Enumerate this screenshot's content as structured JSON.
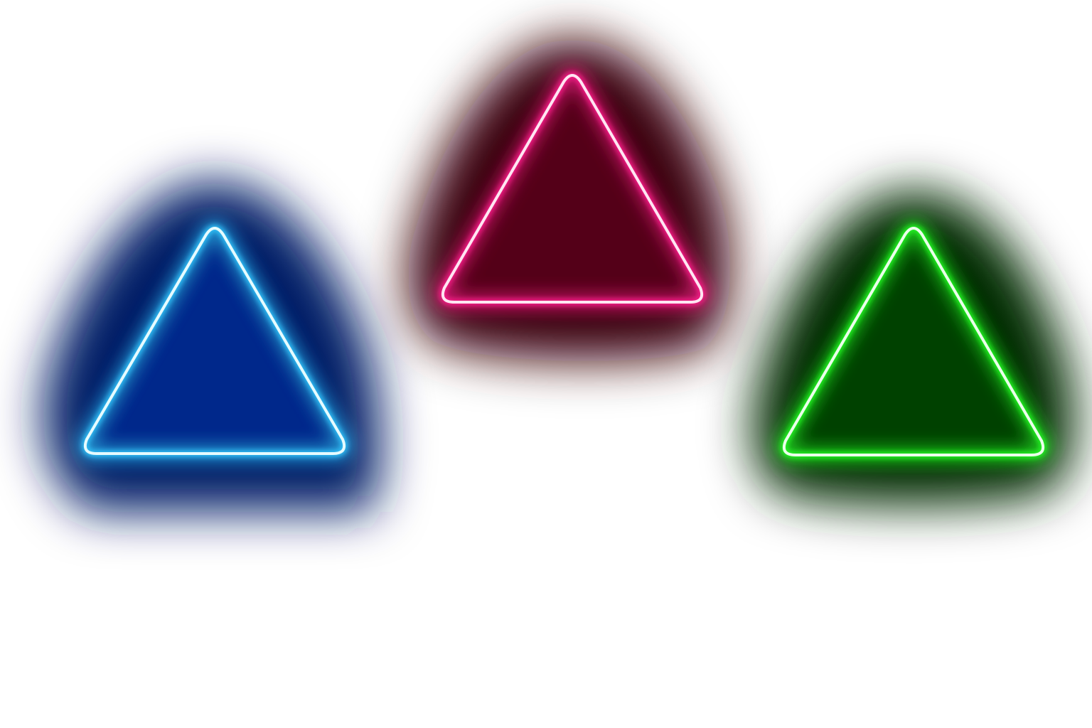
{
  "background_color": "#ffffff",
  "triangles": [
    {
      "name": "blue-neon-triangle",
      "color_name": "blue",
      "glow_color": "#001a66",
      "tint_color": "#0033aa",
      "stroke_color": "#33c8ff",
      "core_color": "#e6fbff"
    },
    {
      "name": "pink-neon-triangle",
      "color_name": "pink",
      "glow_color": "#3a0010",
      "tint_color": "#6a0020",
      "stroke_color": "#ff1a8c",
      "core_color": "#ffe6f2"
    },
    {
      "name": "green-neon-triangle",
      "color_name": "green",
      "glow_color": "#002a00",
      "tint_color": "#005500",
      "stroke_color": "#22ff22",
      "core_color": "#eaffea"
    }
  ]
}
